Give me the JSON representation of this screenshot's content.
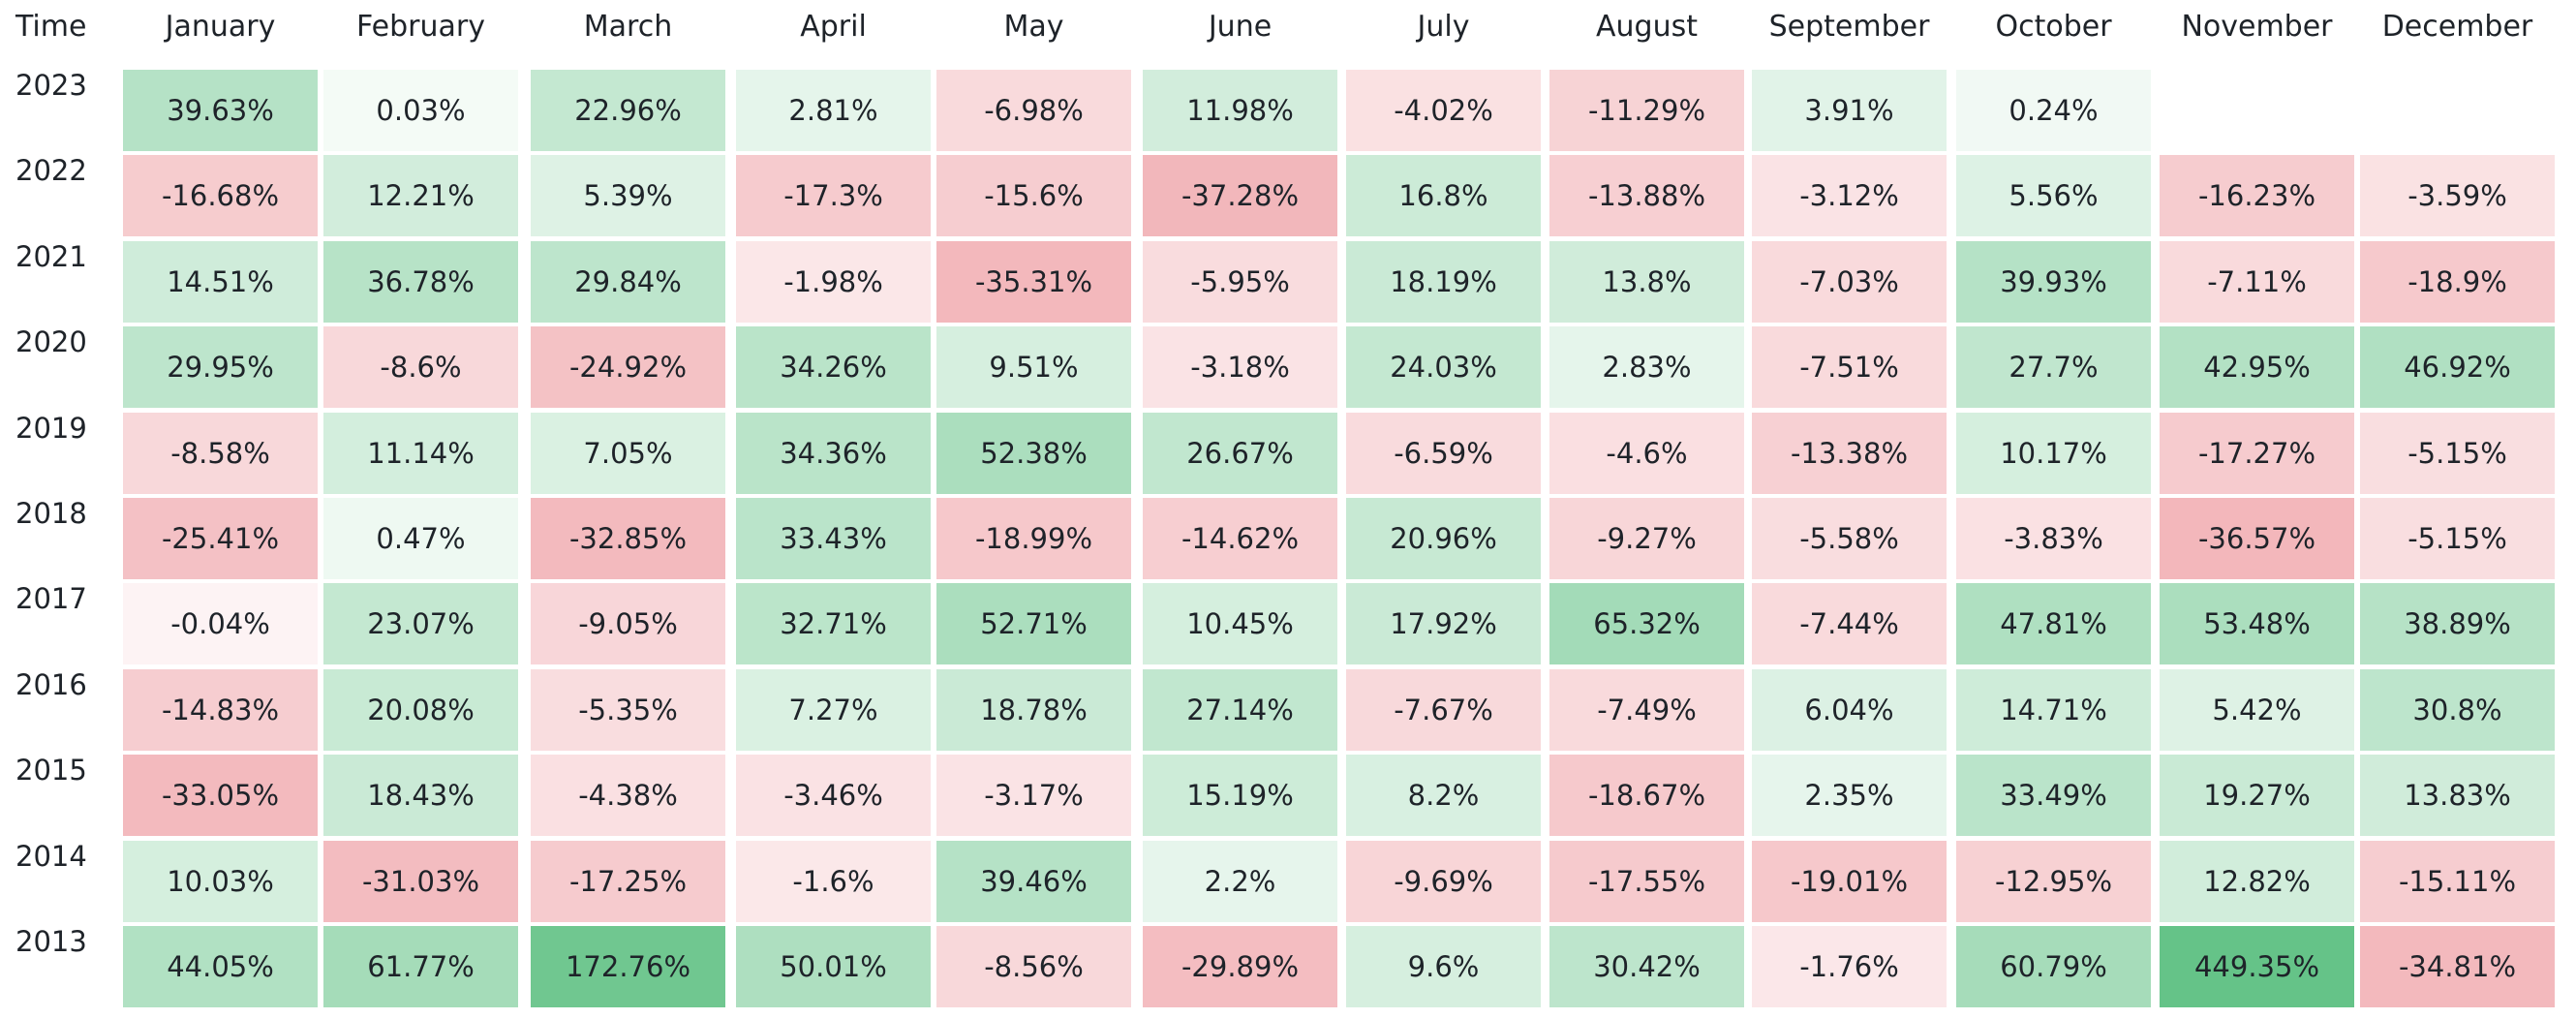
{
  "chart_data": {
    "type": "heatmap",
    "corner_label": "Time",
    "columns": [
      "January",
      "February",
      "March",
      "April",
      "May",
      "June",
      "July",
      "August",
      "September",
      "October",
      "November",
      "December"
    ],
    "rows": [
      {
        "year": "2023",
        "values": [
          "39.63%",
          "0.03%",
          "22.96%",
          "2.81%",
          "-6.98%",
          "11.98%",
          "-4.02%",
          "-11.29%",
          "3.91%",
          "0.24%",
          "",
          ""
        ]
      },
      {
        "year": "2022",
        "values": [
          "-16.68%",
          "12.21%",
          "5.39%",
          "-17.3%",
          "-15.6%",
          "-37.28%",
          "16.8%",
          "-13.88%",
          "-3.12%",
          "5.56%",
          "-16.23%",
          "-3.59%"
        ]
      },
      {
        "year": "2021",
        "values": [
          "14.51%",
          "36.78%",
          "29.84%",
          "-1.98%",
          "-35.31%",
          "-5.95%",
          "18.19%",
          "13.8%",
          "-7.03%",
          "39.93%",
          "-7.11%",
          "-18.9%"
        ]
      },
      {
        "year": "2020",
        "values": [
          "29.95%",
          "-8.6%",
          "-24.92%",
          "34.26%",
          "9.51%",
          "-3.18%",
          "24.03%",
          "2.83%",
          "-7.51%",
          "27.7%",
          "42.95%",
          "46.92%"
        ]
      },
      {
        "year": "2019",
        "values": [
          "-8.58%",
          "11.14%",
          "7.05%",
          "34.36%",
          "52.38%",
          "26.67%",
          "-6.59%",
          "-4.6%",
          "-13.38%",
          "10.17%",
          "-17.27%",
          "-5.15%"
        ]
      },
      {
        "year": "2018",
        "values": [
          "-25.41%",
          "0.47%",
          "-32.85%",
          "33.43%",
          "-18.99%",
          "-14.62%",
          "20.96%",
          "-9.27%",
          "-5.58%",
          "-3.83%",
          "-36.57%",
          "-5.15%"
        ]
      },
      {
        "year": "2017",
        "values": [
          "-0.04%",
          "23.07%",
          "-9.05%",
          "32.71%",
          "52.71%",
          "10.45%",
          "17.92%",
          "65.32%",
          "-7.44%",
          "47.81%",
          "53.48%",
          "38.89%"
        ]
      },
      {
        "year": "2016",
        "values": [
          "-14.83%",
          "20.08%",
          "-5.35%",
          "7.27%",
          "18.78%",
          "27.14%",
          "-7.67%",
          "-7.49%",
          "6.04%",
          "14.71%",
          "5.42%",
          "30.8%"
        ]
      },
      {
        "year": "2015",
        "values": [
          "-33.05%",
          "18.43%",
          "-4.38%",
          "-3.46%",
          "-3.17%",
          "15.19%",
          "8.2%",
          "-18.67%",
          "2.35%",
          "33.49%",
          "19.27%",
          "13.83%"
        ]
      },
      {
        "year": "2014",
        "values": [
          "10.03%",
          "-31.03%",
          "-17.25%",
          "-1.6%",
          "39.46%",
          "2.2%",
          "-9.69%",
          "-17.55%",
          "-19.01%",
          "-12.95%",
          "12.82%",
          "-15.11%"
        ]
      },
      {
        "year": "2013",
        "values": [
          "44.05%",
          "61.77%",
          "172.76%",
          "50.01%",
          "-8.56%",
          "-29.89%",
          "9.6%",
          "30.42%",
          "-1.76%",
          "60.79%",
          "449.35%",
          "-34.81%"
        ]
      }
    ],
    "colors": {
      "positive": "#3fb46a",
      "negative": "#e35d66",
      "text": "#1e2329",
      "background": "#ffffff"
    }
  }
}
